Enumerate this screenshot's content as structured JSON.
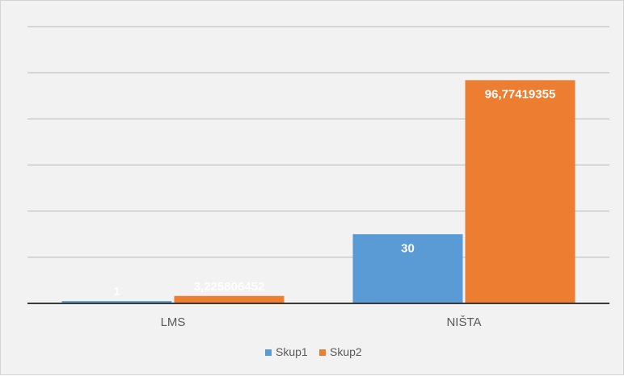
{
  "chart_data": {
    "type": "bar",
    "title": "",
    "xlabel": "",
    "ylabel": "",
    "categories": [
      "LMS",
      "NIŠTA"
    ],
    "series": [
      {
        "name": "Skup1",
        "values": [
          1,
          30
        ],
        "labels": [
          "1",
          "30"
        ],
        "color": "#5b9bd5"
      },
      {
        "name": "Skup2",
        "values": [
          3.225806452,
          96.77419355
        ],
        "labels": [
          "3,225806452",
          "96,77419355"
        ],
        "color": "#ed7d31"
      }
    ],
    "ylim": [
      0,
      120
    ],
    "y_gridlines": [
      0,
      20,
      40,
      60,
      80,
      100,
      120
    ],
    "y_tick_labels_visible": false,
    "grid": true,
    "legend_position": "bottom"
  }
}
